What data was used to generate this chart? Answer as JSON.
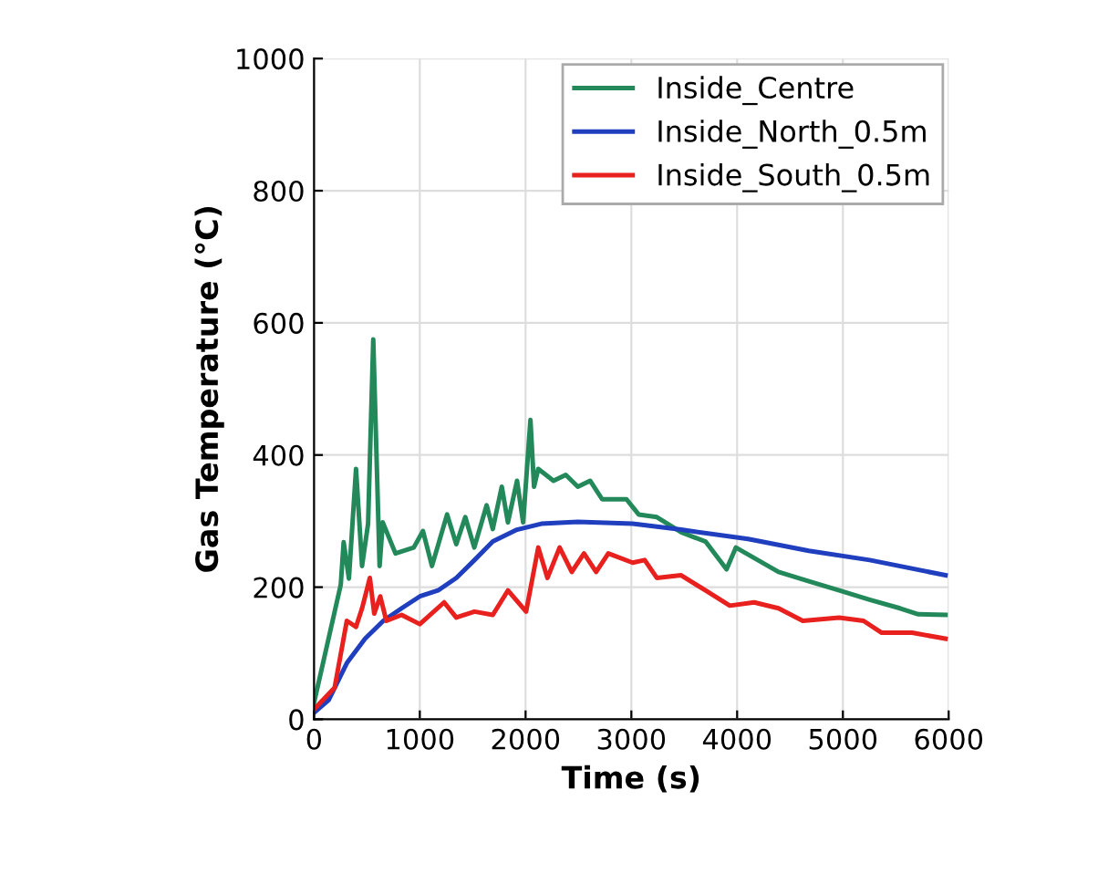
{
  "chart_data": {
    "type": "line",
    "xlabel": "Time (s)",
    "ylabel": "Gas Temperature (°C)",
    "xlim": [
      0,
      6000
    ],
    "ylim": [
      0,
      1000
    ],
    "xticks": [
      0,
      1000,
      2000,
      3000,
      4000,
      5000,
      6000
    ],
    "yticks": [
      0,
      200,
      400,
      600,
      800,
      1000
    ],
    "grid": true,
    "legend": "top right",
    "marker": "none",
    "line_style": "solid",
    "series": [
      {
        "name": "Inside_Centre",
        "color": "#23895a",
        "x": [
          0,
          253,
          280,
          330,
          397,
          454,
          511,
          560,
          620,
          650,
          770,
          943,
          1030,
          1115,
          1258,
          1345,
          1430,
          1515,
          1632,
          1690,
          1775,
          1833,
          1919,
          1977,
          2046,
          2080,
          2120,
          2264,
          2380,
          2494,
          2610,
          2724,
          2954,
          3069,
          3241,
          3471,
          3701,
          3900,
          3988,
          4391,
          4678,
          4965,
          5253,
          5540,
          5713,
          5970
        ],
        "values": [
          25,
          204,
          268,
          213,
          379,
          232,
          296,
          575,
          232,
          298,
          251,
          260,
          285,
          232,
          310,
          265,
          306,
          260,
          324,
          288,
          352,
          298,
          361,
          298,
          453,
          352,
          379,
          361,
          370,
          352,
          361,
          333,
          333,
          310,
          306,
          283,
          269,
          227,
          260,
          223,
          209,
          195,
          181,
          168,
          159,
          158
        ]
      },
      {
        "name": "Inside_North_0.5m",
        "color": "#1f3fbf",
        "x": [
          0,
          138,
          310,
          483,
          655,
          828,
          1000,
          1172,
          1345,
          1517,
          1690,
          1919,
          2149,
          2494,
          3012,
          3471,
          4103,
          4678,
          5253,
          5970
        ],
        "values": [
          10,
          29,
          85,
          122,
          149,
          168,
          186,
          195,
          214,
          241,
          269,
          287,
          296,
          299,
          296,
          287,
          273,
          255,
          241,
          218
        ]
      },
      {
        "name": "Inside_South_0.5m",
        "color": "#e8201e",
        "x": [
          0,
          195,
          310,
          397,
          454,
          528,
          569,
          626,
          684,
          828,
          1000,
          1230,
          1345,
          1517,
          1690,
          1833,
          2005,
          2120,
          2207,
          2322,
          2437,
          2552,
          2667,
          2782,
          3012,
          3126,
          3241,
          3471,
          3701,
          3931,
          4161,
          4391,
          4621,
          4965,
          5195,
          5367,
          5655,
          5970
        ],
        "values": [
          15,
          48,
          149,
          140,
          168,
          214,
          160,
          186,
          149,
          158,
          144,
          177,
          154,
          163,
          158,
          195,
          163,
          260,
          214,
          260,
          223,
          251,
          223,
          251,
          237,
          241,
          214,
          218,
          195,
          172,
          177,
          168,
          149,
          154,
          149,
          131,
          131,
          122
        ]
      }
    ]
  }
}
